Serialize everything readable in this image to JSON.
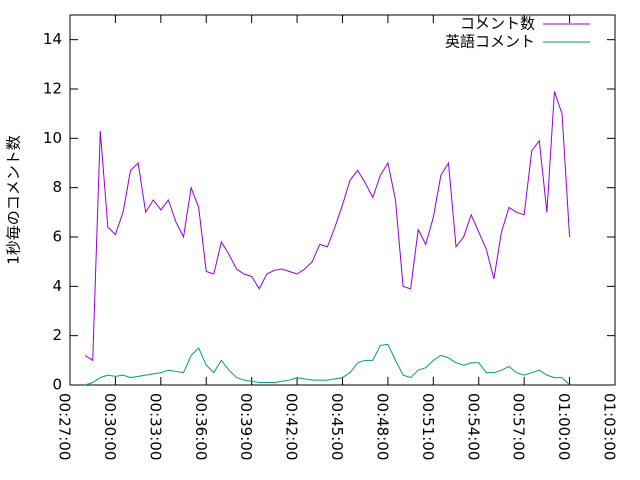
{
  "chart_data": {
    "type": "line",
    "ylabel": "1秒毎のコメント数",
    "x": [
      1680,
      1710,
      1740,
      1770,
      1800,
      1830,
      1860,
      1890,
      1920,
      1950,
      1980,
      2010,
      2040,
      2070,
      2100,
      2130,
      2160,
      2190,
      2220,
      2250,
      2280,
      2310,
      2340,
      2370,
      2400,
      2430,
      2460,
      2490,
      2520,
      2550,
      2580,
      2610,
      2640,
      2670,
      2700,
      2730,
      2760,
      2790,
      2820,
      2850,
      2880,
      2910,
      2940,
      2970,
      3000,
      3030,
      3060,
      3090,
      3120,
      3150,
      3180,
      3210,
      3240,
      3270,
      3300,
      3330,
      3360,
      3390,
      3420,
      3450,
      3480,
      3510,
      3540,
      3570,
      3600
    ],
    "series": [
      {
        "name": "コメント数",
        "color": "#9400d3",
        "values": [
          1.2,
          1.0,
          10.3,
          6.4,
          6.1,
          7.0,
          8.7,
          9.0,
          7.0,
          7.5,
          7.1,
          7.5,
          6.6,
          6.0,
          8.0,
          7.2,
          4.6,
          4.5,
          5.8,
          5.3,
          4.7,
          4.5,
          4.4,
          3.9,
          4.5,
          4.65,
          4.7,
          4.6,
          4.5,
          4.7,
          5.0,
          5.7,
          5.6,
          6.4,
          7.3,
          8.3,
          8.7,
          8.2,
          7.6,
          8.5,
          9.0,
          7.5,
          4.0,
          3.9,
          6.3,
          5.7,
          6.8,
          8.5,
          9.0,
          5.6,
          6.0,
          6.9,
          6.2,
          5.5,
          4.3,
          6.2,
          7.2,
          7.0,
          6.9,
          9.5,
          9.9,
          7.0,
          11.9,
          11.0,
          6.0
        ]
      },
      {
        "name": "英語コメント",
        "color": "#009e73",
        "values": [
          0.0,
          0.1,
          0.3,
          0.4,
          0.35,
          0.4,
          0.3,
          0.35,
          0.4,
          0.45,
          0.5,
          0.6,
          0.55,
          0.5,
          1.2,
          1.5,
          0.8,
          0.5,
          1.0,
          0.6,
          0.3,
          0.2,
          0.15,
          0.1,
          0.1,
          0.1,
          0.15,
          0.2,
          0.3,
          0.25,
          0.2,
          0.2,
          0.2,
          0.25,
          0.3,
          0.5,
          0.9,
          1.0,
          1.0,
          1.6,
          1.65,
          1.0,
          0.4,
          0.3,
          0.6,
          0.7,
          1.0,
          1.2,
          1.1,
          0.9,
          0.8,
          0.9,
          0.9,
          0.5,
          0.5,
          0.6,
          0.75,
          0.5,
          0.4,
          0.5,
          0.6,
          0.4,
          0.3,
          0.3,
          0.0
        ]
      }
    ],
    "xlim": [
      1620,
      3780
    ],
    "xticks": [
      {
        "value": 1620,
        "label": "00:27:00"
      },
      {
        "value": 1800,
        "label": "00:30:00"
      },
      {
        "value": 1980,
        "label": "00:33:00"
      },
      {
        "value": 2160,
        "label": "00:36:00"
      },
      {
        "value": 2340,
        "label": "00:39:00"
      },
      {
        "value": 2520,
        "label": "00:42:00"
      },
      {
        "value": 2700,
        "label": "00:45:00"
      },
      {
        "value": 2880,
        "label": "00:48:00"
      },
      {
        "value": 3060,
        "label": "00:51:00"
      },
      {
        "value": 3240,
        "label": "00:54:00"
      },
      {
        "value": 3420,
        "label": "00:57:00"
      },
      {
        "value": 3600,
        "label": "01:00:00"
      },
      {
        "value": 3780,
        "label": "01:03:00"
      }
    ],
    "ylim": [
      0,
      15
    ],
    "yticks": [
      0,
      2,
      4,
      6,
      8,
      10,
      12,
      14
    ],
    "legend": "top-right"
  }
}
